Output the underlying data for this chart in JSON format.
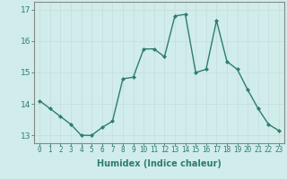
{
  "xlabel": "Humidex (Indice chaleur)",
  "x": [
    0,
    1,
    2,
    3,
    4,
    5,
    6,
    7,
    8,
    9,
    10,
    11,
    12,
    13,
    14,
    15,
    16,
    17,
    18,
    19,
    20,
    21,
    22,
    23
  ],
  "y": [
    14.1,
    13.85,
    13.6,
    13.35,
    13.0,
    13.0,
    13.25,
    13.45,
    14.8,
    14.85,
    15.75,
    15.75,
    15.5,
    16.8,
    16.85,
    15.0,
    15.1,
    16.65,
    15.35,
    15.1,
    14.45,
    13.85,
    13.35,
    13.15
  ],
  "line_color": "#2e7d6e",
  "marker": "D",
  "marker_size": 2.0,
  "bg_color": "#d0eceb",
  "grid_color": "#c8dede",
  "ylim": [
    12.75,
    17.25
  ],
  "yticks": [
    13,
    14,
    15,
    16,
    17
  ],
  "xlim": [
    -0.5,
    23.5
  ],
  "xticks": [
    0,
    1,
    2,
    3,
    4,
    5,
    6,
    7,
    8,
    9,
    10,
    11,
    12,
    13,
    14,
    15,
    16,
    17,
    18,
    19,
    20,
    21,
    22,
    23
  ],
  "tick_color": "#2e7d6e",
  "spine_color": "#888888",
  "xlabel_fontsize": 7,
  "tick_fontsize": 5.5,
  "ytick_fontsize": 6.5,
  "linewidth": 1.0
}
